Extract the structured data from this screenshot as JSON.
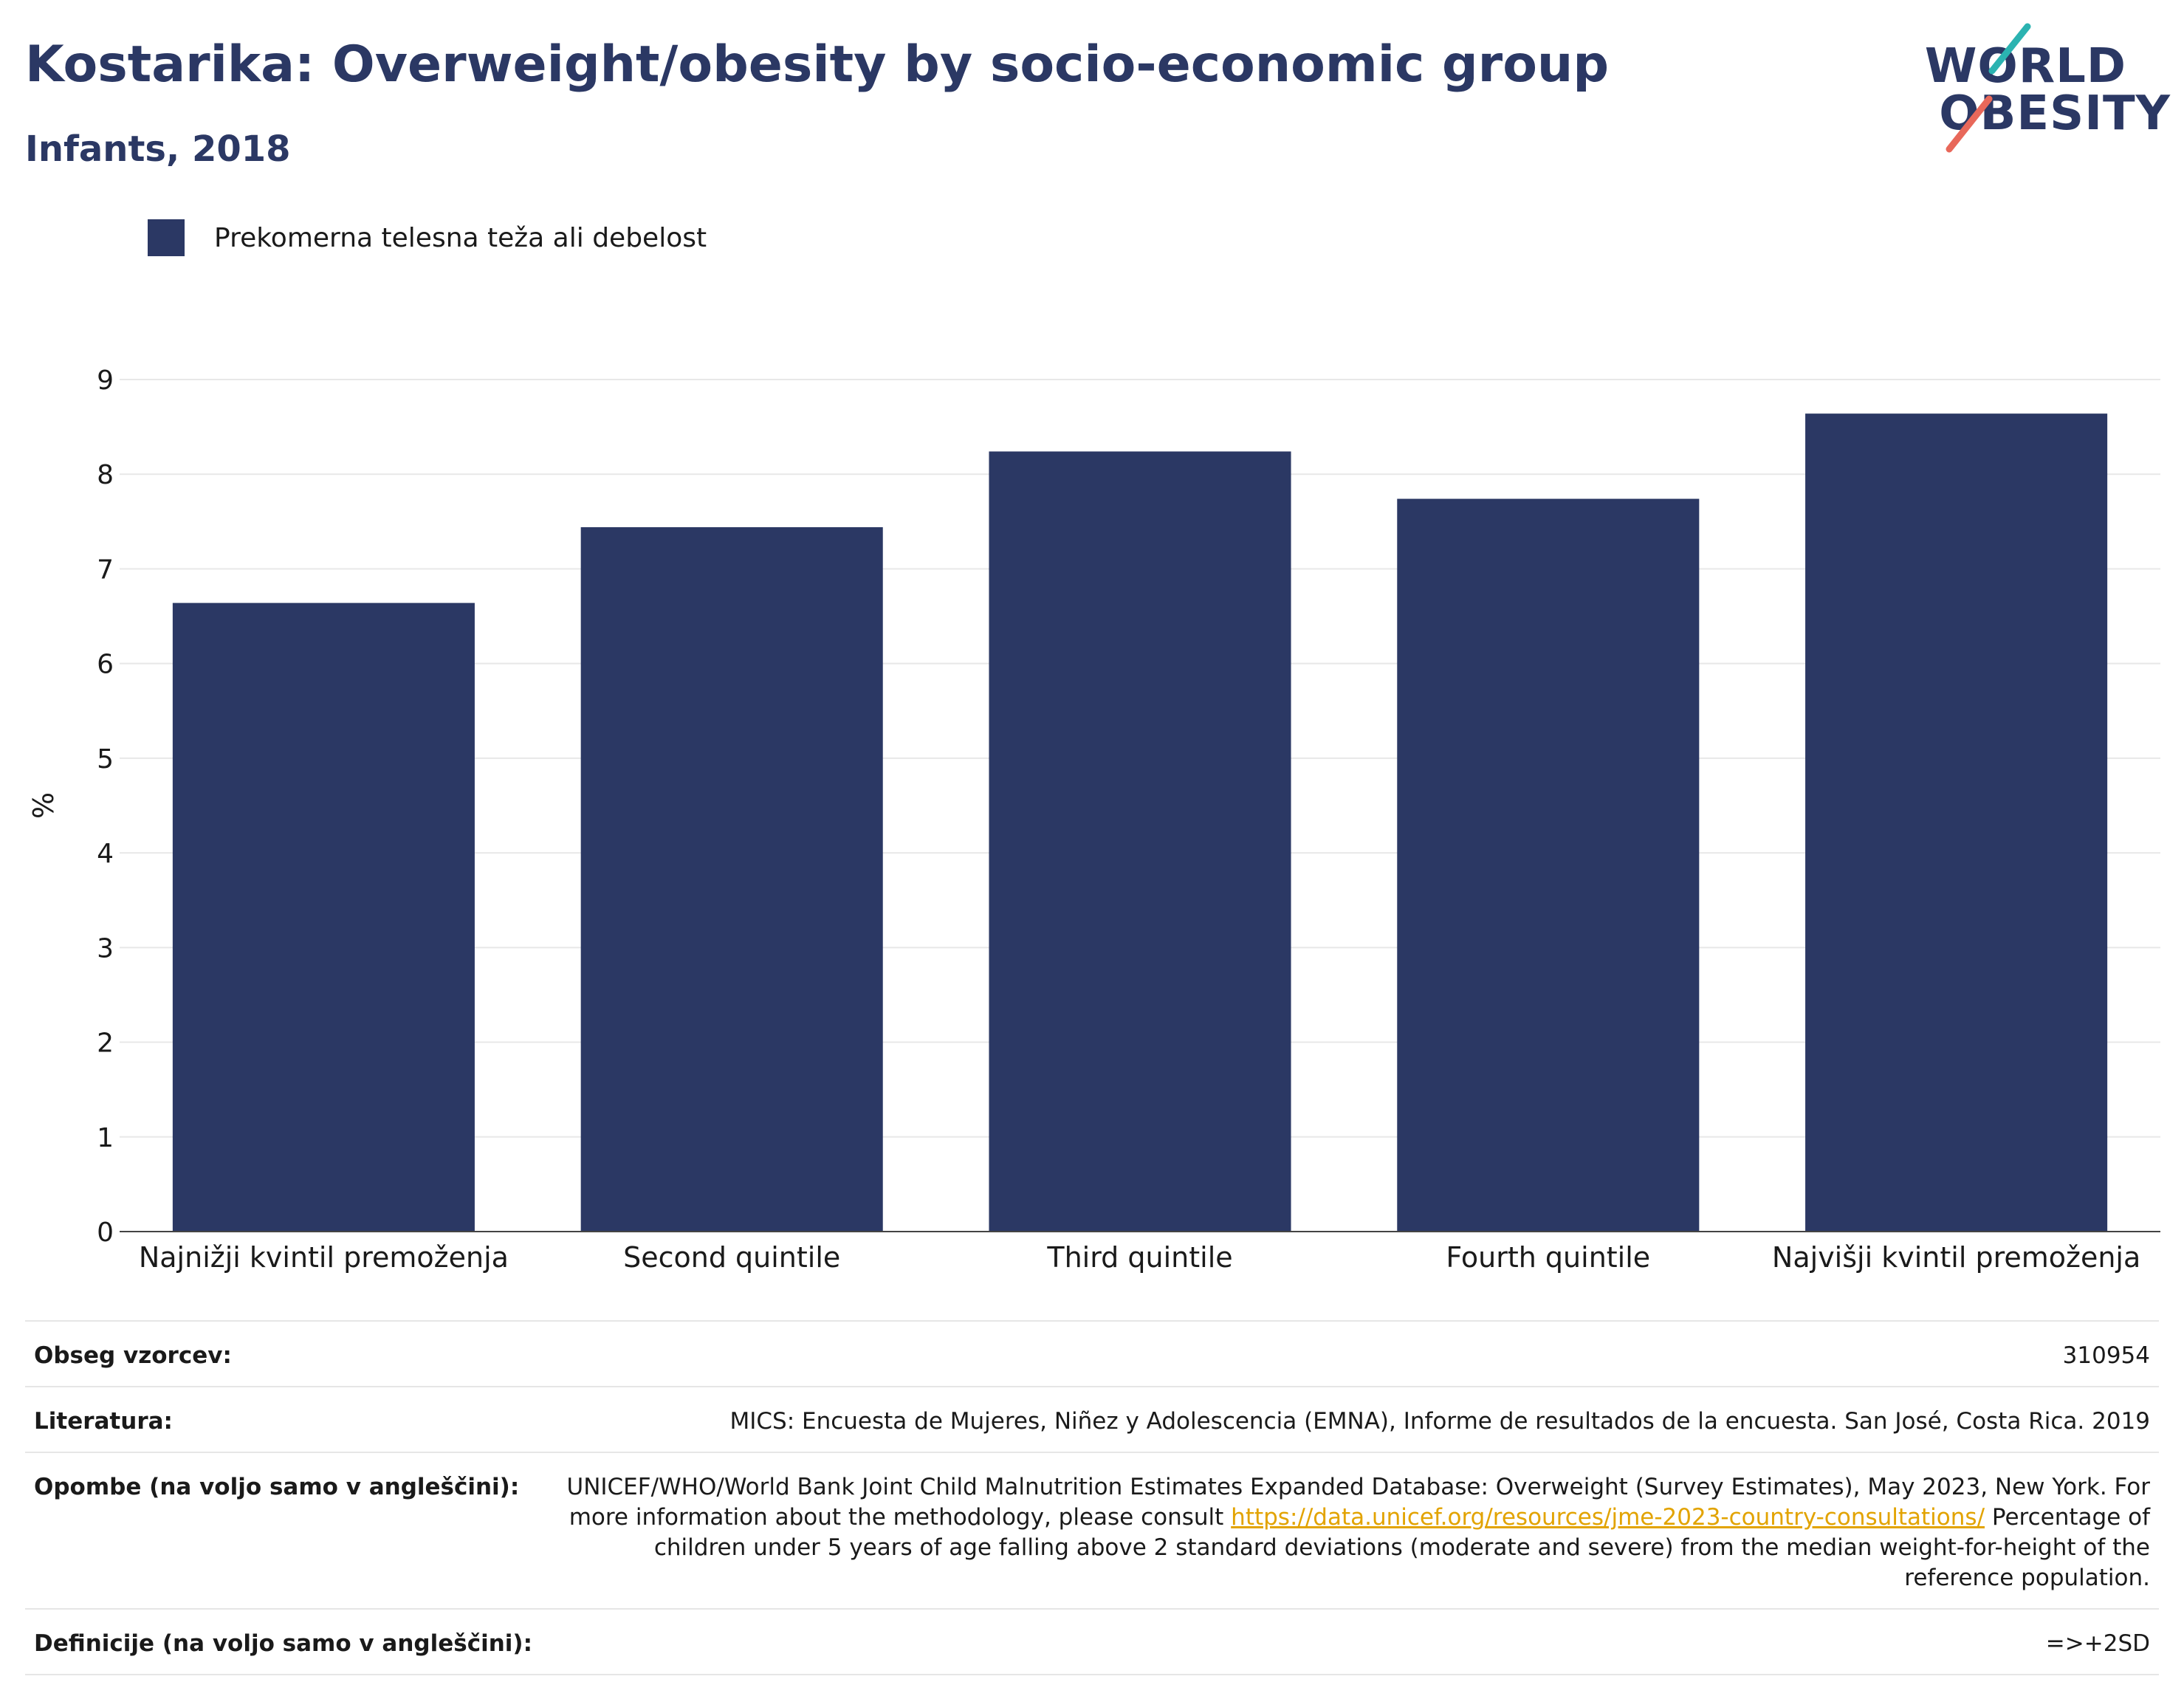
{
  "header": {
    "title": "Kostarika: Overweight/obesity by socio-economic group",
    "subtitle": "Infants, 2018"
  },
  "logo": {
    "line1": "WORLD",
    "line2": "OBESITY",
    "colors": {
      "navy": "#2b3864",
      "teal": "#2bb3b1",
      "coral": "#e8685a"
    }
  },
  "legend": {
    "label": "Prekomerna telesna teža ali debelost"
  },
  "chart_data": {
    "type": "bar",
    "categories": [
      "Najnižji kvintil premoženja",
      "Second quintile",
      "Third quintile",
      "Fourth quintile",
      "Najvišji kvintil premoženja"
    ],
    "series": [
      {
        "name": "Prekomerna telesna teža ali debelost",
        "values": [
          6.64,
          7.44,
          8.24,
          7.74,
          8.64
        ],
        "color": "#2b3864"
      }
    ],
    "ylabel": "%",
    "ylim": [
      0,
      9
    ],
    "yticks": [
      0,
      1,
      2,
      3,
      4,
      5,
      6,
      7,
      8,
      9
    ],
    "grid": true,
    "legend_position": "top-left"
  },
  "info": {
    "rows": [
      {
        "label": "Obseg vzorcev:",
        "value": "310954"
      },
      {
        "label": "Literatura:",
        "value": "MICS: Encuesta de Mujeres, Niñez y Adolescencia (EMNA), Informe de resultados de la encuesta. San José, Costa Rica. 2019"
      },
      {
        "label": "Opombe (na voljo samo v angleščini):",
        "value_before": "UNICEF/WHO/World Bank Joint Child Malnutrition Estimates Expanded Database: Overweight (Survey Estimates), May 2023, New York. For more information about the methodology, please consult ",
        "link": "https://data.unicef.org/resources/jme-2023-country-consultations/",
        "value_after": " Percentage of children under 5 years of age falling above 2 standard deviations (moderate and severe) from the median weight-for-height of the reference population."
      },
      {
        "label": "Definicije (na voljo samo v angleščini):",
        "value": "=>+2SD"
      }
    ]
  }
}
